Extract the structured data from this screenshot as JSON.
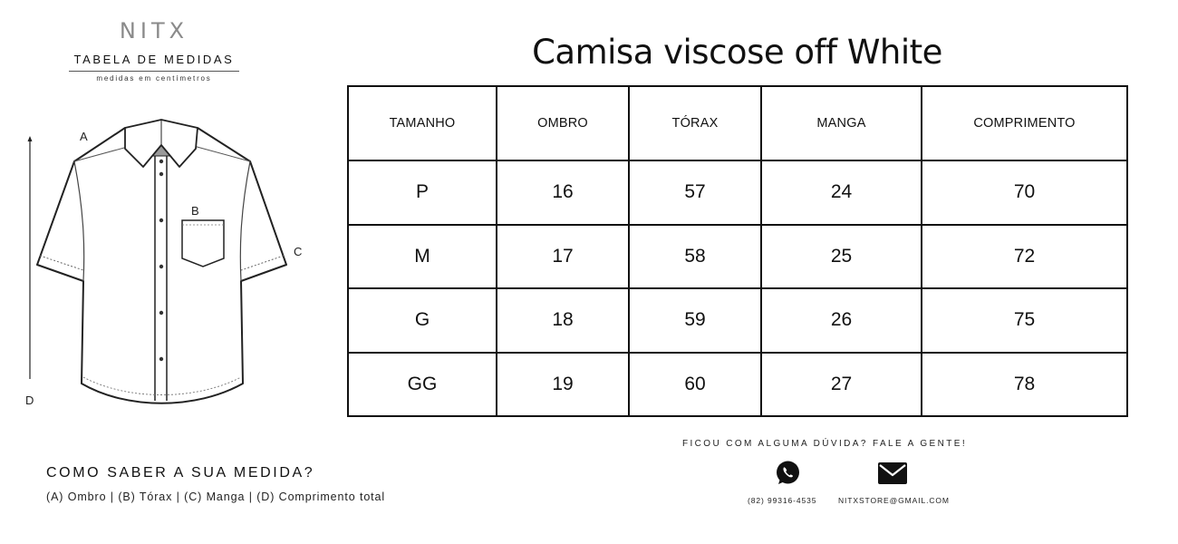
{
  "brand": {
    "name": "NITX",
    "subtitle": "TABELA DE MEDIDAS",
    "units": "medidas em centímetros"
  },
  "diagram": {
    "labels": {
      "a": "A",
      "b": "B",
      "c": "C",
      "d": "D"
    }
  },
  "product": {
    "title": "Camisa viscose off White"
  },
  "table": {
    "headers": [
      "TAMANHO",
      "OMBRO",
      "TÓRAX",
      "MANGA",
      "COMPRIMENTO"
    ],
    "rows": [
      [
        "P",
        "16",
        "57",
        "24",
        "70"
      ],
      [
        "M",
        "17",
        "58",
        "25",
        "72"
      ],
      [
        "G",
        "18",
        "59",
        "26",
        "75"
      ],
      [
        "GG",
        "19",
        "60",
        "27",
        "78"
      ]
    ]
  },
  "howto": {
    "title": "COMO SABER A SUA MEDIDA?",
    "text": "(A) Ombro | (B) Tórax | (C) Manga | (D) Comprimento total"
  },
  "contact": {
    "title": "FICOU COM ALGUMA DÚVIDA? FALE A GENTE!",
    "phone": "(82) 99316-4535",
    "email": "NITXSTORE@GMAIL.COM",
    "phone_icon": "whatsapp-icon",
    "email_icon": "envelope-icon"
  }
}
